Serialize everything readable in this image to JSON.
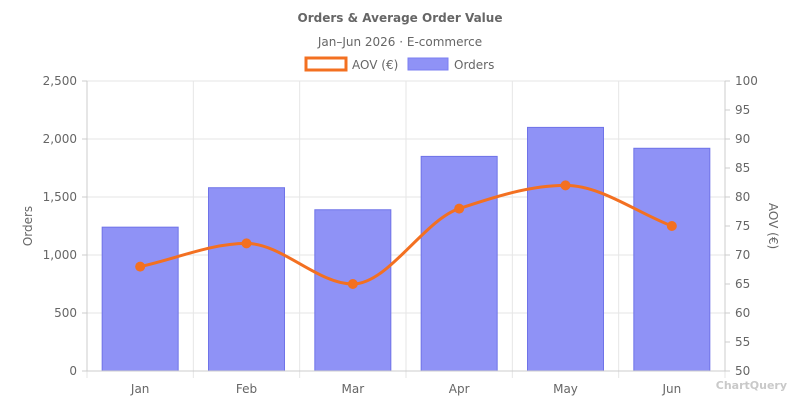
{
  "chart_data": {
    "type": "bar",
    "title": "Orders & Average Order Value",
    "subtitle": "Jan–Jun 2026 · E-commerce",
    "categories": [
      "Jan",
      "Feb",
      "Mar",
      "Apr",
      "May",
      "Jun"
    ],
    "series": [
      {
        "name": "Orders",
        "type": "bar",
        "axis": "left",
        "color": "#7b7ff2",
        "values": [
          1240,
          1580,
          1390,
          1850,
          2100,
          1920
        ]
      },
      {
        "name": "AOV (€)",
        "type": "line",
        "axis": "right",
        "color": "#f37021",
        "smooth": true,
        "values": [
          68,
          72,
          65,
          78,
          82,
          75
        ]
      }
    ],
    "y_left": {
      "label": "Orders",
      "min": 0,
      "max": 2500,
      "ticks": [
        0,
        500,
        1000,
        1500,
        2000,
        2500
      ],
      "tick_labels": [
        "0",
        "500",
        "1,000",
        "1,500",
        "2,000",
        "2,500"
      ]
    },
    "y_right": {
      "label": "AOV (€)",
      "min": 50,
      "max": 100,
      "ticks": [
        50,
        55,
        60,
        65,
        70,
        75,
        80,
        85,
        90,
        95,
        100
      ],
      "tick_labels": [
        "50",
        "55",
        "60",
        "65",
        "70",
        "75",
        "80",
        "85",
        "90",
        "95",
        "100"
      ]
    },
    "legend": {
      "position": "top-center",
      "entries": [
        "AOV (€)",
        "Orders"
      ]
    },
    "grid": true,
    "watermark": "ChartQuery"
  }
}
